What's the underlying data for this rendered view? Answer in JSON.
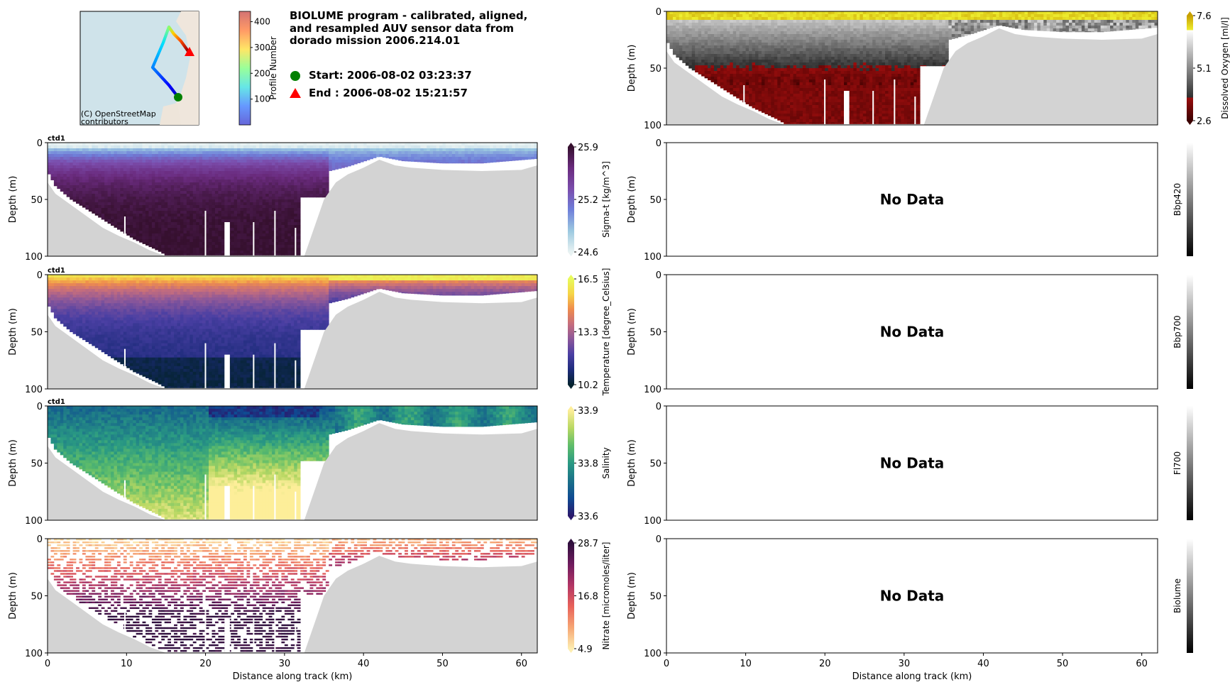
{
  "header": {
    "title_lines": [
      "BIOLUME program - calibrated, aligned,",
      "and resampled AUV sensor data from",
      "dorado mission 2006.214.01"
    ],
    "start_label": "Start: 2006-08-02 03:23:37",
    "end_label": "End  : 2006-08-02 15:21:57",
    "start_color": "#008000",
    "end_color": "#ff0000"
  },
  "map": {
    "attribution_lines": [
      "(C) OpenStreetMap",
      "contributors"
    ],
    "colorbar": {
      "label": "Profile Number",
      "ticks": [
        "100",
        "200",
        "300",
        "400"
      ],
      "tick_values": [
        100,
        200,
        300,
        400
      ],
      "range": [
        0,
        440
      ]
    }
  },
  "axes": {
    "ylabel": "Depth (m)",
    "xlabel": "Distance along track (km)",
    "yticks": [
      "0",
      "50",
      "100"
    ],
    "ytick_values": [
      0,
      50,
      100
    ],
    "xticks": [
      "0",
      "10",
      "20",
      "30",
      "40",
      "50",
      "60"
    ],
    "xtick_values": [
      0,
      10,
      20,
      30,
      40,
      50,
      60
    ],
    "xlim": [
      0,
      62
    ],
    "ylim": [
      100,
      0
    ],
    "no_data": "No Data"
  },
  "chart_data": [
    {
      "id": "sigma_t",
      "type": "heatmap",
      "instrument": "ctd1",
      "cbar_label": "Sigma-t [kg/m^3]",
      "cbar_ticks": [
        "24.6",
        "25.2",
        "25.9"
      ],
      "range": [
        24.6,
        25.9
      ],
      "colors": [
        "#e8f2f2",
        "#9cc9e0",
        "#6f80da",
        "#7b4dac",
        "#6a2b7e",
        "#36102f"
      ],
      "column": "left",
      "row": 1
    },
    {
      "id": "temperature",
      "type": "heatmap",
      "instrument": "ctd1",
      "cbar_label": "Temperature [degree_Celsius]",
      "cbar_ticks": [
        "10.2",
        "13.3",
        "16.5"
      ],
      "range": [
        10.2,
        16.5
      ],
      "colors": [
        "#04232f",
        "#1e2c7c",
        "#4a3fa3",
        "#8a579a",
        "#c56d7d",
        "#ef8c4d",
        "#f6d447",
        "#e8fa5b"
      ],
      "column": "left",
      "row": 2
    },
    {
      "id": "salinity",
      "type": "heatmap",
      "instrument": "ctd1",
      "cbar_label": "Salinity",
      "cbar_ticks": [
        "33.6",
        "33.8",
        "33.9"
      ],
      "range": [
        33.6,
        33.9
      ],
      "colors": [
        "#2a186c",
        "#0f4a92",
        "#1b7189",
        "#2a9a83",
        "#5fbd6a",
        "#b9d863",
        "#fdee99"
      ],
      "column": "left",
      "row": 3
    },
    {
      "id": "nitrate",
      "type": "heatmap",
      "instrument": "",
      "cbar_label": "Nitrate [micromoles/liter]",
      "cbar_ticks": [
        "4.9",
        "16.8",
        "28.7"
      ],
      "range": [
        4.9,
        28.7
      ],
      "colors": [
        "#fdedb0",
        "#f6a674",
        "#e8625a",
        "#b23565",
        "#6e1b5d",
        "#2f0f3d"
      ],
      "column": "left",
      "row": 4
    },
    {
      "id": "dissolved_oxygen",
      "type": "heatmap",
      "instrument": "",
      "cbar_label": "Dissolved Oxygen [ml/l]",
      "cbar_ticks": [
        "2.6",
        "5.1",
        "7.6"
      ],
      "range": [
        2.6,
        7.6
      ],
      "colors": [
        "#3b0000",
        "#9b0e0e",
        "#2e2e2e",
        "#ffffff",
        "#eeee30",
        "#c8a000"
      ],
      "column": "right",
      "row": 0
    },
    {
      "id": "bbp420",
      "type": "heatmap",
      "cbar_label": "Bbp420",
      "no_data": true,
      "colors": [
        "#000000",
        "#ffffff"
      ],
      "column": "right",
      "row": 1
    },
    {
      "id": "bbp700",
      "type": "heatmap",
      "cbar_label": "Bbp700",
      "no_data": true,
      "colors": [
        "#000000",
        "#ffffff"
      ],
      "column": "right",
      "row": 2
    },
    {
      "id": "fl700",
      "type": "heatmap",
      "cbar_label": "Fl700",
      "no_data": true,
      "colors": [
        "#000000",
        "#ffffff"
      ],
      "column": "right",
      "row": 3
    },
    {
      "id": "biolume",
      "type": "heatmap",
      "cbar_label": "Biolume",
      "no_data": true,
      "colors": [
        "#000000",
        "#ffffff"
      ],
      "column": "right",
      "row": 4
    }
  ],
  "bathymetry": {
    "distance_km": [
      0,
      1,
      3,
      5,
      7,
      9,
      11,
      13,
      15,
      32.5,
      33,
      34,
      35,
      36.5,
      38,
      40,
      42,
      44,
      46,
      50,
      55,
      60,
      62
    ],
    "depth_m": [
      35,
      45,
      55,
      65,
      75,
      82,
      88,
      95,
      101,
      101,
      90,
      70,
      50,
      35,
      28,
      22,
      15,
      20,
      22,
      24,
      25,
      24,
      20
    ],
    "color": "#d3d3d3"
  },
  "data_bottom": {
    "distance_km": [
      0,
      1,
      3,
      6,
      8,
      11,
      14,
      15,
      32,
      32.1,
      35.5,
      35.6,
      38,
      42,
      45,
      50,
      55,
      62
    ],
    "depth_m": [
      25,
      38,
      50,
      63,
      72,
      85,
      95,
      99,
      99,
      48,
      48,
      25,
      21,
      12,
      16,
      18,
      18,
      14
    ]
  }
}
